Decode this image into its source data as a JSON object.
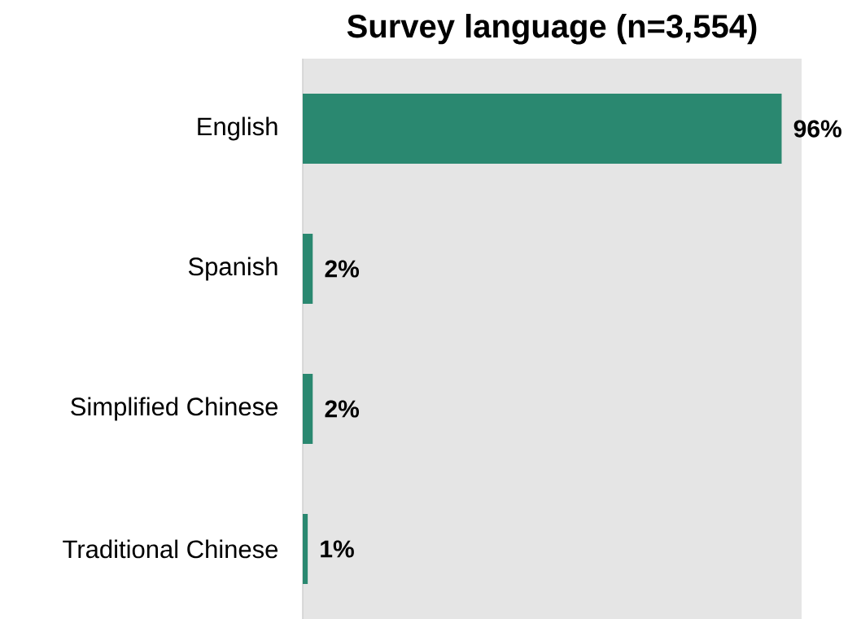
{
  "chart_data": {
    "type": "bar",
    "title": "Survey language (n=3,554)",
    "orientation": "horizontal",
    "categories": [
      "English",
      "Spanish",
      "Simplified Chinese",
      "Traditional Chinese"
    ],
    "values": [
      96,
      2,
      2,
      1
    ],
    "value_labels": [
      "96%",
      "2%",
      "2%",
      "1%"
    ],
    "color": "#2a8870",
    "xlim": [
      0,
      100
    ],
    "tick_labels": "y"
  }
}
